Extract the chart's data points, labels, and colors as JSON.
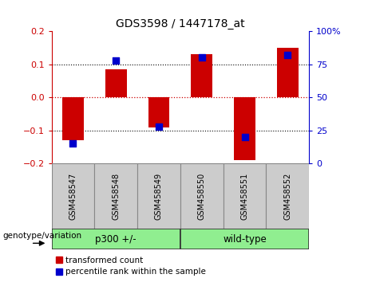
{
  "title": "GDS3598 / 1447178_at",
  "samples": [
    "GSM458547",
    "GSM458548",
    "GSM458549",
    "GSM458550",
    "GSM458551",
    "GSM458552"
  ],
  "red_values": [
    -0.13,
    0.085,
    -0.09,
    0.13,
    -0.19,
    0.15
  ],
  "blue_percentiles": [
    15,
    78,
    28,
    80,
    20,
    82
  ],
  "group1_label": "p300 +/-",
  "group1_samples": [
    0,
    1,
    2
  ],
  "group2_label": "wild-type",
  "group2_samples": [
    3,
    4,
    5
  ],
  "group_color": "#90EE90",
  "ylim": [
    -0.2,
    0.2
  ],
  "y2lim": [
    0,
    100
  ],
  "y_ticks": [
    -0.2,
    -0.1,
    0.0,
    0.1,
    0.2
  ],
  "y2_ticks": [
    0,
    25,
    50,
    75,
    100
  ],
  "y2_ticklabels": [
    "0",
    "25",
    "50",
    "75",
    "100%"
  ],
  "red_color": "#CC0000",
  "blue_color": "#0000CC",
  "bar_width": 0.5,
  "dot_size": 35,
  "group_label": "genotype/variation",
  "legend_red": "transformed count",
  "legend_blue": "percentile rank within the sample",
  "title_fontsize": 10,
  "tick_fontsize": 8,
  "sample_fontsize": 7,
  "group_fontsize": 8.5,
  "legend_fontsize": 7.5,
  "genotype_fontsize": 7.5,
  "sample_box_color": "#CCCCCC",
  "sample_box_edge": "#888888"
}
